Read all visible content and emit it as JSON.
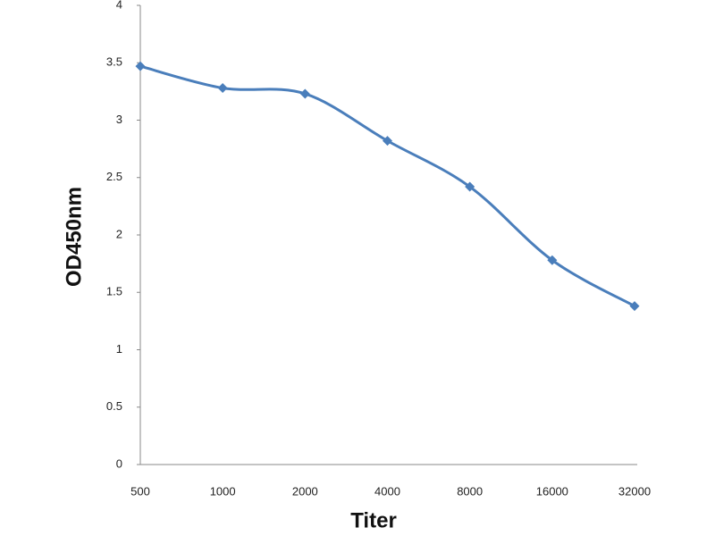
{
  "chart_data": {
    "type": "line",
    "x_label": "Titer",
    "y_label": "OD450nm",
    "categories": [
      "500",
      "1000",
      "2000",
      "4000",
      "8000",
      "16000",
      "32000"
    ],
    "values": [
      3.47,
      3.28,
      3.23,
      2.82,
      2.42,
      1.78,
      1.38
    ],
    "color": "#4a7ebb",
    "smooth": true,
    "marker": "diamond",
    "ylim": [
      0,
      4
    ],
    "yticks": [
      0,
      0.5,
      1,
      1.5,
      2,
      2.5,
      3,
      3.5,
      4
    ],
    "grid": false
  }
}
